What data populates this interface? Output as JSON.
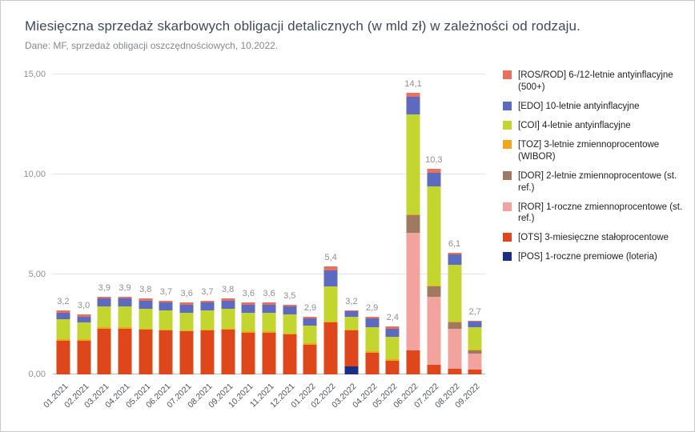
{
  "header": {
    "title": "Miesięczna sprzedaż skarbowych obligacji detalicznych (w mld zł) w zależności od rodzaju.",
    "subtitle": "Dane: MF, sprzedaż obligacji oszczędnościowych, 10.2022."
  },
  "chart_data": {
    "type": "bar",
    "stacked": true,
    "grid": "horizontal",
    "legend_position": "right",
    "ylim": [
      0,
      15
    ],
    "yticks": [
      {
        "value": 0,
        "label": "0,00"
      },
      {
        "value": 5,
        "label": "5,00"
      },
      {
        "value": 10,
        "label": "10,00"
      },
      {
        "value": 15,
        "label": "15,00"
      }
    ],
    "categories": [
      "01.2021",
      "02.2021",
      "03.2021",
      "04.2021",
      "05.2021",
      "06.2021",
      "07.2021",
      "08.2021",
      "09.2021",
      "10.2021",
      "11.2021",
      "12.2021",
      "01.2022",
      "02.2022",
      "03.2022",
      "04.2022",
      "05.2022",
      "06.2022",
      "07.2022",
      "08.2022",
      "09.2022"
    ],
    "totals_labels": [
      "3,2",
      "3,0",
      "3,9",
      "3,9",
      "3,8",
      "3,7",
      "3,6",
      "3,7",
      "3,8",
      "3,6",
      "3,6",
      "3,5",
      "2,9",
      "5,4",
      "3,2",
      "2,9",
      "2,4",
      "14,1",
      "10,3",
      "6,1",
      "2,7"
    ],
    "series": [
      {
        "key": "POS",
        "color": "#1c2d85",
        "label": "[POS] 1-roczne premiowe (loteria)",
        "values": [
          0,
          0,
          0,
          0,
          0,
          0,
          0,
          0,
          0,
          0,
          0,
          0,
          0,
          0,
          0.4,
          0,
          0,
          0,
          0,
          0,
          0
        ]
      },
      {
        "key": "OTS",
        "color": "#de471b",
        "label": "[OTS] 3-miesięczne stałoprocentowe",
        "values": [
          1.7,
          1.7,
          2.3,
          2.3,
          2.25,
          2.2,
          2.15,
          2.2,
          2.25,
          2.1,
          2.1,
          2.0,
          1.5,
          2.6,
          1.8,
          1.1,
          0.7,
          1.2,
          0.5,
          0.3,
          0.25
        ]
      },
      {
        "key": "ROR",
        "color": "#f2a39e",
        "label": "[ROR] 1-roczne zmiennoprocentowe (st. ref.)",
        "values": [
          0,
          0,
          0,
          0,
          0,
          0,
          0,
          0,
          0,
          0,
          0,
          0,
          0,
          0,
          0,
          0,
          0,
          5.9,
          3.4,
          2.0,
          0.8
        ]
      },
      {
        "key": "DOR",
        "color": "#9e7b60",
        "label": "[DOR] 2-letnie zmiennoprocentowe (st. ref.)",
        "values": [
          0,
          0,
          0,
          0,
          0,
          0,
          0,
          0,
          0,
          0,
          0,
          0,
          0,
          0,
          0,
          0,
          0,
          0.85,
          0.5,
          0.3,
          0.15
        ]
      },
      {
        "key": "TOZ",
        "color": "#f2a71b",
        "label": "[TOZ] 3-letnie zmiennoprocentowe (WIBOR)",
        "values": [
          0.05,
          0.05,
          0.05,
          0.05,
          0.05,
          0.05,
          0.05,
          0.05,
          0.05,
          0.05,
          0.05,
          0.05,
          0.05,
          0.05,
          0.05,
          0.05,
          0.05,
          0.05,
          0.05,
          0.05,
          0.05
        ]
      },
      {
        "key": "COI",
        "color": "#c3d62f",
        "label": "[COI] 4-letnie antyinflacyjne",
        "values": [
          1.0,
          0.85,
          1.05,
          1.05,
          1.0,
          0.95,
          0.9,
          0.95,
          1.0,
          0.95,
          0.95,
          0.95,
          0.9,
          1.75,
          0.65,
          1.2,
          1.15,
          5.0,
          4.95,
          2.85,
          1.1
        ]
      },
      {
        "key": "EDO",
        "color": "#5c6bc0",
        "label": "[EDO] 10-letnie antyinflacyjne",
        "values": [
          0.35,
          0.3,
          0.4,
          0.4,
          0.4,
          0.4,
          0.4,
          0.4,
          0.4,
          0.4,
          0.4,
          0.4,
          0.35,
          0.8,
          0.25,
          0.45,
          0.4,
          0.9,
          0.7,
          0.5,
          0.3
        ]
      },
      {
        "key": "ROS_ROD",
        "color": "#e8705c",
        "label": "[ROS/ROD] 6-/12-letnie antyinflacyjne (500+)",
        "values": [
          0.1,
          0.1,
          0.1,
          0.1,
          0.1,
          0.1,
          0.1,
          0.1,
          0.1,
          0.1,
          0.1,
          0.1,
          0.1,
          0.2,
          0.05,
          0.1,
          0.1,
          0.2,
          0.2,
          0.1,
          0.05
        ]
      }
    ]
  }
}
